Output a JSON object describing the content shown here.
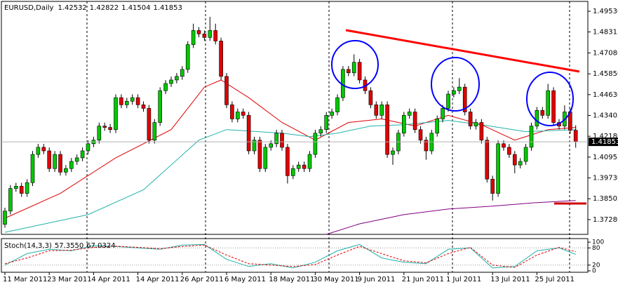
{
  "chart_data": [
    {
      "type": "candlestick",
      "title": "EURUSD,Daily",
      "categories": [
        "11 Mar 2011",
        null,
        null,
        null,
        null,
        null,
        null,
        null,
        "23 Mar 2011",
        null,
        null,
        null,
        null,
        null,
        null,
        null,
        "4 Apr 2011",
        null,
        null,
        null,
        null,
        null,
        null,
        null,
        "14 Apr 2011",
        null,
        null,
        null,
        null,
        null,
        null,
        null,
        "26 Apr 2011",
        null,
        null,
        null,
        null,
        null,
        null,
        null,
        "6 May 2011",
        null,
        null,
        null,
        null,
        null,
        null,
        null,
        "18 May 2011",
        null,
        null,
        null,
        null,
        null,
        null,
        null,
        "30 May 2011",
        null,
        null,
        null,
        null,
        null,
        null,
        null,
        "9 Jun 2011",
        null,
        null,
        null,
        null,
        null,
        null,
        null,
        "21 Jun 2011",
        null,
        null,
        null,
        null,
        null,
        null,
        null,
        "1 Jul 2011",
        null,
        null,
        null,
        null,
        null,
        null,
        null,
        "13 Jul 2011",
        null,
        null,
        null,
        null,
        null,
        null,
        null,
        "25 Jul 2011",
        null,
        null,
        null,
        null,
        null,
        null,
        null
      ],
      "open": [
        1.37,
        1.3778,
        1.3911,
        1.3924,
        1.3882,
        1.3945,
        1.4111,
        1.4153,
        1.4132,
        1.4028,
        1.4111,
        1.4007,
        1.4028,
        1.407,
        1.4091,
        1.4132,
        1.4174,
        1.4195,
        1.4278,
        1.427,
        1.4257,
        1.4445,
        1.4403,
        1.4424,
        1.4445,
        1.4403,
        1.4382,
        1.4195,
        1.4299,
        1.4486,
        1.4528,
        1.4549,
        1.457,
        1.4611,
        1.4757,
        1.484,
        1.482,
        1.4799,
        1.484,
        1.4778,
        1.457,
        1.4403,
        1.432,
        1.4361,
        1.4341,
        1.4132,
        1.4195,
        1.4028,
        1.4153,
        1.4174,
        1.4236,
        1.4153,
        1.3986,
        1.4028,
        1.4049,
        1.4028,
        1.4111,
        1.4236,
        1.4257,
        1.4341,
        1.4361,
        1.4445,
        1.4611,
        1.4591,
        1.4653,
        1.4549,
        1.4486,
        1.4403,
        1.4341,
        1.4403,
        1.4111,
        1.4132,
        1.4236,
        1.4341,
        1.4361,
        1.4257,
        1.4195,
        1.4132,
        1.4236,
        1.432,
        1.4382,
        1.4466,
        1.4486,
        1.4507,
        1.4361,
        1.4278,
        1.4299,
        1.4195,
        1.3966,
        1.3882,
        1.4174,
        1.4153,
        1.4111,
        1.4049,
        1.407,
        1.4153,
        1.4278,
        1.437,
        1.4341,
        1.4486,
        1.4299,
        1.4278,
        1.4361,
        1.42532
      ],
      "high": [
        1.3798,
        1.3931,
        1.3944,
        1.3944,
        1.3965,
        1.4131,
        1.4173,
        1.4173,
        1.4152,
        1.4131,
        1.4131,
        1.4048,
        1.409,
        1.4111,
        1.4152,
        1.4194,
        1.4215,
        1.4298,
        1.4298,
        1.429,
        1.4465,
        1.4465,
        1.4444,
        1.4465,
        1.4465,
        1.4423,
        1.4402,
        1.4319,
        1.4506,
        1.4548,
        1.4569,
        1.459,
        1.4631,
        1.4777,
        1.488,
        1.486,
        1.484,
        1.492,
        1.488,
        1.4798,
        1.459,
        1.4423,
        1.4381,
        1.4381,
        1.4361,
        1.4215,
        1.4215,
        1.4173,
        1.4194,
        1.4256,
        1.4256,
        1.4173,
        1.4048,
        1.4069,
        1.4069,
        1.4131,
        1.4256,
        1.4277,
        1.4361,
        1.4381,
        1.4465,
        1.4631,
        1.4631,
        1.47,
        1.4673,
        1.4569,
        1.4506,
        1.4423,
        1.4423,
        1.4423,
        1.4152,
        1.4256,
        1.4361,
        1.4381,
        1.4381,
        1.4277,
        1.4215,
        1.4256,
        1.434,
        1.4402,
        1.4486,
        1.4506,
        1.456,
        1.4527,
        1.4381,
        1.4319,
        1.4319,
        1.4215,
        1.3986,
        1.4194,
        1.4194,
        1.4173,
        1.4131,
        1.409,
        1.4173,
        1.4298,
        1.439,
        1.439,
        1.4526,
        1.4506,
        1.4319,
        1.44,
        1.4381,
        1.42822
      ],
      "low": [
        1.368,
        1.3758,
        1.3891,
        1.3862,
        1.3862,
        1.3925,
        1.4091,
        1.4112,
        1.4008,
        1.4008,
        1.3987,
        1.3987,
        1.4008,
        1.405,
        1.4071,
        1.4112,
        1.4154,
        1.4175,
        1.425,
        1.4237,
        1.4237,
        1.4383,
        1.4383,
        1.4404,
        1.4383,
        1.4362,
        1.4175,
        1.4175,
        1.4279,
        1.4466,
        1.4508,
        1.4529,
        1.455,
        1.4591,
        1.4737,
        1.48,
        1.4779,
        1.4779,
        1.4758,
        1.455,
        1.4383,
        1.43,
        1.43,
        1.4321,
        1.4112,
        1.4112,
        1.4008,
        1.4008,
        1.4133,
        1.4154,
        1.4133,
        1.394,
        1.3966,
        1.4008,
        1.4008,
        1.4008,
        1.4091,
        1.4216,
        1.4237,
        1.4321,
        1.4341,
        1.4425,
        1.4571,
        1.4571,
        1.4529,
        1.4466,
        1.4383,
        1.4321,
        1.4321,
        1.4091,
        1.405,
        1.4112,
        1.4216,
        1.4321,
        1.4237,
        1.4175,
        1.408,
        1.4112,
        1.4216,
        1.43,
        1.4362,
        1.4446,
        1.4466,
        1.4341,
        1.4258,
        1.4258,
        1.4175,
        1.3946,
        1.384,
        1.3862,
        1.4133,
        1.4091,
        1.4,
        1.4029,
        1.405,
        1.4133,
        1.4258,
        1.4321,
        1.4321,
        1.4279,
        1.4258,
        1.4258,
        1.4233,
        1.41504
      ],
      "close": [
        1.3778,
        1.3911,
        1.3924,
        1.3882,
        1.3945,
        1.4111,
        1.4153,
        1.4132,
        1.4028,
        1.4111,
        1.4007,
        1.4028,
        1.407,
        1.4091,
        1.4132,
        1.4174,
        1.4195,
        1.4278,
        1.427,
        1.4257,
        1.4445,
        1.4403,
        1.4424,
        1.4445,
        1.4403,
        1.4382,
        1.4195,
        1.4299,
        1.4486,
        1.4528,
        1.4549,
        1.457,
        1.4611,
        1.4757,
        1.484,
        1.482,
        1.4799,
        1.484,
        1.4778,
        1.457,
        1.4403,
        1.432,
        1.4361,
        1.4341,
        1.4132,
        1.4195,
        1.4028,
        1.4153,
        1.4174,
        1.4236,
        1.4153,
        1.3986,
        1.4028,
        1.4049,
        1.4028,
        1.4111,
        1.4236,
        1.4257,
        1.4341,
        1.4361,
        1.4445,
        1.4611,
        1.4591,
        1.4653,
        1.4549,
        1.4486,
        1.4403,
        1.4341,
        1.4403,
        1.4111,
        1.4132,
        1.4236,
        1.4341,
        1.4361,
        1.4257,
        1.4195,
        1.4132,
        1.4236,
        1.432,
        1.4382,
        1.4466,
        1.4486,
        1.4507,
        1.4361,
        1.4278,
        1.4299,
        1.4195,
        1.3966,
        1.3882,
        1.4174,
        1.4153,
        1.4111,
        1.4049,
        1.407,
        1.4153,
        1.4278,
        1.437,
        1.4341,
        1.4486,
        1.4299,
        1.4278,
        1.4361,
        1.4253,
        1.41853
      ],
      "up_color": "#00c800",
      "down_color": "#e00000",
      "moving_averages": [
        {
          "color": "#e00000",
          "x": [
            0,
            10,
            20,
            30,
            36,
            39,
            44,
            50,
            56,
            62,
            68,
            74,
            80,
            86,
            92,
            98,
            103
          ],
          "values": [
            1.3736,
            1.3882,
            1.4091,
            1.4257,
            1.4507,
            1.4549,
            1.4445,
            1.4299,
            1.4195,
            1.4299,
            1.432,
            1.4278,
            1.4341,
            1.4286,
            1.4195,
            1.4257,
            1.427
          ]
        },
        {
          "color": "#20b2aa",
          "x": [
            0,
            15,
            25,
            35,
            40,
            50,
            55,
            60,
            66,
            72,
            80,
            86,
            94,
            103
          ],
          "values": [
            1.3653,
            1.3757,
            1.3903,
            1.4195,
            1.4257,
            1.4236,
            1.4216,
            1.4236,
            1.4278,
            1.4286,
            1.4311,
            1.4286,
            1.4245,
            1.4257
          ]
        },
        {
          "color": "#800080",
          "x": [
            58,
            64,
            72,
            80,
            88,
            96,
            103
          ],
          "values": [
            1.3641,
            1.3703,
            1.3757,
            1.379,
            1.3807,
            1.3828,
            1.384
          ]
        }
      ],
      "ylim": [
        1.3641,
        1.5011
      ],
      "yticks": [
        {
          "value": 1.4953,
          "label": "1.49530"
        },
        {
          "value": 1.48315,
          "label": "1.48315"
        },
        {
          "value": 1.4708,
          "label": "1.47080"
        },
        {
          "value": 1.4585,
          "label": "1.45850"
        },
        {
          "value": 1.4463,
          "label": "1.44630"
        },
        {
          "value": 1.43405,
          "label": "1.43405"
        },
        {
          "value": 1.4218,
          "label": "1.42180"
        },
        {
          "value": 1.40955,
          "label": "1.40955"
        },
        {
          "value": 1.3973,
          "label": "1.39730"
        },
        {
          "value": 1.38505,
          "label": "1.38505"
        },
        {
          "value": 1.3728,
          "label": "1.37280"
        }
      ]
    },
    {
      "type": "line",
      "title": "Stoch(14,3,3)",
      "series": [
        {
          "color": "#20b2aa",
          "x": [
            0,
            4,
            8,
            12,
            16,
            20,
            24,
            28,
            32,
            36,
            40,
            44,
            48,
            52,
            56,
            60,
            64,
            68,
            72,
            76,
            80,
            84,
            88,
            92,
            96,
            100,
            103
          ],
          "values": [
            20,
            60,
            75,
            70,
            88,
            85,
            80,
            75,
            90,
            92,
            40,
            15,
            25,
            10,
            30,
            70,
            92,
            45,
            30,
            25,
            75,
            80,
            10,
            15,
            70,
            80,
            57.355
          ],
          "readout": {
            "value": 57.355,
            "label": "57.3550"
          }
        },
        {
          "color": "#e00000",
          "dashed": true,
          "x": [
            0,
            4,
            8,
            12,
            16,
            20,
            24,
            28,
            32,
            36,
            40,
            44,
            48,
            52,
            56,
            60,
            64,
            68,
            72,
            76,
            80,
            84,
            88,
            92,
            96,
            100,
            103
          ],
          "values": [
            25,
            45,
            70,
            72,
            82,
            86,
            82,
            77,
            85,
            90,
            55,
            25,
            20,
            15,
            22,
            55,
            85,
            60,
            35,
            28,
            60,
            82,
            20,
            12,
            55,
            82,
            67.0324
          ],
          "readout": {
            "value": 67.0324,
            "label": "67.0324"
          }
        }
      ],
      "levels": [
        20,
        80
      ],
      "ylim": [
        -5,
        112.5
      ],
      "yticks": [
        0,
        20,
        80,
        100
      ]
    }
  ]
}
